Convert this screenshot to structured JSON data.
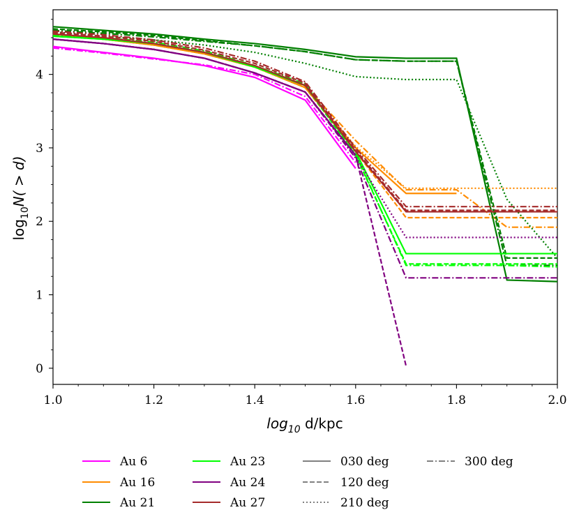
{
  "chart_data": {
    "type": "line",
    "title": "",
    "xlabel_main": "log",
    "xlabel_sub": "10",
    "xlabel_rest": " d/kpc",
    "ylabel_main": "log",
    "ylabel_sub": "10",
    "ylabel_rest": "N( > d)",
    "xlim": [
      1.0,
      2.0
    ],
    "ylim": [
      -0.22,
      4.88
    ],
    "xticks": [
      1.0,
      1.2,
      1.4,
      1.6,
      1.8,
      2.0
    ],
    "xtick_labels": [
      "1.0",
      "1.2",
      "1.4",
      "1.6",
      "1.8",
      "2.0"
    ],
    "yticks": [
      0,
      1,
      2,
      3,
      4
    ],
    "ytick_labels": [
      "0",
      "1",
      "2",
      "3",
      "4"
    ],
    "grid": false,
    "legend_placement": "bottom-outside",
    "halos": [
      {
        "name": "Au 6",
        "color": "#ff00ff"
      },
      {
        "name": "Au 16",
        "color": "#ff8c00"
      },
      {
        "name": "Au 21",
        "color": "#007f00"
      },
      {
        "name": "Au 23",
        "color": "#00ff00"
      },
      {
        "name": "Au 24",
        "color": "#800080"
      },
      {
        "name": "Au 27",
        "color": "#a52a2a"
      }
    ],
    "line_styles": [
      {
        "name": "030 deg",
        "dash": "solid"
      },
      {
        "name": "120 deg",
        "dash": "dashed"
      },
      {
        "name": "210 deg",
        "dash": "dotted"
      },
      {
        "name": "300 deg",
        "dash": "dashdot"
      }
    ],
    "series": [
      {
        "halo": "Au 6",
        "angle": "030 deg",
        "x": [
          1.0,
          1.1,
          1.2,
          1.3,
          1.4,
          1.5,
          1.6
        ],
        "y": [
          4.38,
          4.3,
          4.22,
          4.12,
          3.96,
          3.65,
          2.72
        ]
      },
      {
        "halo": "Au 6",
        "angle": "300 deg",
        "x": [
          1.0,
          1.1,
          1.2,
          1.3,
          1.4,
          1.5,
          1.6
        ],
        "y": [
          4.36,
          4.29,
          4.21,
          4.13,
          4.0,
          3.7,
          2.8
        ]
      },
      {
        "halo": "Au 16",
        "angle": "030 deg",
        "x": [
          1.0,
          1.1,
          1.2,
          1.3,
          1.4,
          1.5,
          1.6,
          1.7,
          1.8
        ],
        "y": [
          4.55,
          4.48,
          4.4,
          4.28,
          4.1,
          3.82,
          3.0,
          2.38,
          2.38
        ]
      },
      {
        "halo": "Au 16",
        "angle": "120 deg",
        "x": [
          1.0,
          1.1,
          1.2,
          1.3,
          1.4,
          1.5,
          1.6,
          1.7,
          1.8,
          1.9,
          2.0
        ],
        "y": [
          4.55,
          4.48,
          4.4,
          4.28,
          4.1,
          3.82,
          2.95,
          2.05,
          2.05,
          2.05,
          2.05
        ]
      },
      {
        "halo": "Au 16",
        "angle": "210 deg",
        "x": [
          1.0,
          1.1,
          1.2,
          1.3,
          1.4,
          1.5,
          1.6,
          1.7,
          1.8,
          1.9,
          2.0
        ],
        "y": [
          4.55,
          4.48,
          4.4,
          4.28,
          4.1,
          3.82,
          3.02,
          2.45,
          2.45,
          2.45,
          2.45
        ]
      },
      {
        "halo": "Au 16",
        "angle": "300 deg",
        "x": [
          1.0,
          1.1,
          1.2,
          1.3,
          1.4,
          1.5,
          1.6,
          1.7,
          1.8,
          1.9,
          2.0
        ],
        "y": [
          4.55,
          4.48,
          4.4,
          4.28,
          4.12,
          3.84,
          3.1,
          2.43,
          2.43,
          1.92,
          1.92
        ]
      },
      {
        "halo": "Au 21",
        "angle": "030 deg",
        "x": [
          1.0,
          1.1,
          1.2,
          1.3,
          1.4,
          1.5,
          1.6,
          1.7,
          1.8,
          1.9,
          2.0
        ],
        "y": [
          4.65,
          4.6,
          4.55,
          4.48,
          4.42,
          4.34,
          4.24,
          4.22,
          4.22,
          1.2,
          1.18
        ]
      },
      {
        "halo": "Au 21",
        "angle": "120 deg",
        "x": [
          1.0,
          1.1,
          1.2,
          1.3,
          1.4,
          1.5,
          1.6,
          1.7,
          1.8,
          1.9,
          2.0
        ],
        "y": [
          4.62,
          4.58,
          4.53,
          4.46,
          4.39,
          4.31,
          4.2,
          4.18,
          4.18,
          1.5,
          1.5
        ]
      },
      {
        "halo": "Au 21",
        "angle": "210 deg",
        "x": [
          1.0,
          1.1,
          1.2,
          1.3,
          1.4,
          1.5,
          1.6,
          1.7,
          1.8,
          1.9,
          2.0
        ],
        "y": [
          4.58,
          4.52,
          4.47,
          4.4,
          4.3,
          4.15,
          3.97,
          3.93,
          3.93,
          2.3,
          1.5
        ]
      },
      {
        "halo": "Au 21",
        "angle": "300 deg",
        "x": [
          1.0,
          1.1,
          1.2,
          1.3,
          1.4,
          1.5,
          1.6,
          1.7,
          1.8,
          1.9,
          2.0
        ],
        "y": [
          4.6,
          4.56,
          4.51,
          4.45,
          4.39,
          4.31,
          4.2,
          4.18,
          4.18,
          1.4,
          1.4
        ]
      },
      {
        "halo": "Au 23",
        "angle": "030 deg",
        "x": [
          1.0,
          1.1,
          1.2,
          1.3,
          1.4,
          1.5,
          1.6,
          1.7,
          1.8,
          1.9,
          2.0
        ],
        "y": [
          4.52,
          4.48,
          4.42,
          4.3,
          4.1,
          3.85,
          2.95,
          1.56,
          1.56,
          1.56,
          1.56
        ]
      },
      {
        "halo": "Au 23",
        "angle": "120 deg",
        "x": [
          1.0,
          1.1,
          1.2,
          1.3,
          1.4,
          1.5,
          1.6,
          1.7,
          1.8,
          1.9,
          2.0
        ],
        "y": [
          4.52,
          4.48,
          4.42,
          4.3,
          4.1,
          3.85,
          2.9,
          1.42,
          1.42,
          1.42,
          1.42
        ]
      },
      {
        "halo": "Au 23",
        "angle": "300 deg",
        "x": [
          1.0,
          1.1,
          1.2,
          1.3,
          1.4,
          1.5,
          1.6,
          1.7,
          1.8,
          1.9,
          2.0
        ],
        "y": [
          4.54,
          4.5,
          4.44,
          4.32,
          4.12,
          3.87,
          2.92,
          1.4,
          1.4,
          1.4,
          1.38
        ]
      },
      {
        "halo": "Au 24",
        "angle": "030 deg",
        "x": [
          1.0,
          1.1,
          1.2,
          1.3,
          1.4,
          1.5,
          1.6
        ],
        "y": [
          4.48,
          4.42,
          4.34,
          4.22,
          4.02,
          3.76,
          2.9
        ]
      },
      {
        "halo": "Au 24",
        "angle": "120 deg",
        "x": [
          1.0,
          1.1,
          1.2,
          1.3,
          1.4,
          1.5,
          1.6,
          1.7
        ],
        "y": [
          4.48,
          4.42,
          4.34,
          4.22,
          4.02,
          3.76,
          2.9,
          0.03
        ]
      },
      {
        "halo": "Au 24",
        "angle": "210 deg",
        "x": [
          1.0,
          1.1,
          1.2,
          1.3,
          1.4,
          1.5,
          1.6,
          1.7,
          1.8,
          1.9,
          2.0
        ],
        "y": [
          4.48,
          4.42,
          4.34,
          4.22,
          4.02,
          3.76,
          2.88,
          1.78,
          1.78,
          1.78,
          1.78
        ]
      },
      {
        "halo": "Au 24",
        "angle": "300 deg",
        "x": [
          1.0,
          1.1,
          1.2,
          1.3,
          1.4,
          1.5,
          1.6,
          1.7,
          1.8,
          1.9,
          2.0
        ],
        "y": [
          4.48,
          4.42,
          4.34,
          4.22,
          4.02,
          3.76,
          2.86,
          1.23,
          1.23,
          1.23,
          1.23
        ]
      },
      {
        "halo": "Au 27",
        "angle": "030 deg",
        "x": [
          1.0,
          1.1,
          1.2,
          1.3,
          1.4,
          1.5,
          1.6,
          1.7,
          1.8,
          1.9,
          2.0
        ],
        "y": [
          4.55,
          4.5,
          4.42,
          4.3,
          4.12,
          3.85,
          2.95,
          2.13,
          2.13,
          2.13,
          2.13
        ]
      },
      {
        "halo": "Au 27",
        "angle": "120 deg",
        "x": [
          1.0,
          1.1,
          1.2,
          1.3,
          1.4,
          1.5,
          1.6,
          1.7,
          1.8,
          1.9,
          2.0
        ],
        "y": [
          4.57,
          4.52,
          4.45,
          4.33,
          4.15,
          3.88,
          2.97,
          2.15,
          2.15,
          2.15,
          2.15
        ]
      },
      {
        "halo": "Au 27",
        "angle": "300 deg",
        "x": [
          1.0,
          1.1,
          1.2,
          1.3,
          1.4,
          1.5,
          1.6,
          1.7,
          1.8,
          1.9,
          2.0
        ],
        "y": [
          4.59,
          4.54,
          4.47,
          4.36,
          4.18,
          3.9,
          3.0,
          2.2,
          2.2,
          2.2,
          2.2
        ]
      }
    ]
  }
}
